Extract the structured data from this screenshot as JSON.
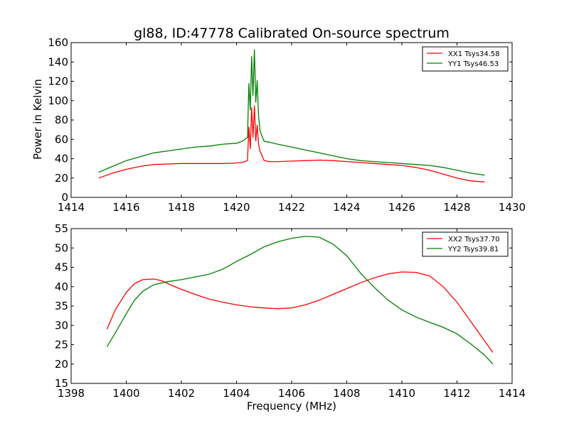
{
  "figure": {
    "title": "gl88, ID:47778 Calibrated On-source spectrum",
    "ylabel": "Power in Kelvin",
    "xlabel": "Frequency (MHz)"
  },
  "colors": {
    "xx": "#ff0000",
    "yy": "#008000",
    "axes": "#000000",
    "background": "#ffffff"
  },
  "chart_data": [
    {
      "type": "line",
      "title": "gl88, ID:47778 Calibrated On-source spectrum",
      "ylabel": "Power in Kelvin",
      "xlabel": "",
      "xlim": [
        1414,
        1430
      ],
      "ylim": [
        0,
        160
      ],
      "xticks": [
        1414,
        1416,
        1418,
        1420,
        1422,
        1424,
        1426,
        1428,
        1430
      ],
      "yticks": [
        0,
        20,
        40,
        60,
        80,
        100,
        120,
        140,
        160
      ],
      "legend_position": "top-right",
      "grid": false,
      "series": [
        {
          "name": "XX1 Tsys34.58",
          "color": "#ff0000",
          "x": [
            1415.0,
            1415.5,
            1416.0,
            1416.5,
            1417.0,
            1417.5,
            1418.0,
            1418.5,
            1419.0,
            1419.5,
            1420.0,
            1420.2,
            1420.4,
            1420.45,
            1420.5,
            1420.55,
            1420.6,
            1420.65,
            1420.7,
            1420.75,
            1420.8,
            1420.85,
            1420.9,
            1421.0,
            1421.2,
            1421.5,
            1422.0,
            1422.5,
            1423.0,
            1423.5,
            1424.0,
            1424.5,
            1425.0,
            1425.5,
            1426.0,
            1426.5,
            1427.0,
            1427.5,
            1428.0,
            1428.5,
            1429.0
          ],
          "y": [
            20,
            25,
            29,
            32,
            34,
            34.5,
            35,
            35,
            35,
            35,
            35.5,
            36,
            38,
            73,
            50,
            93,
            62,
            95,
            58,
            75,
            55,
            48,
            45,
            38,
            37,
            37,
            37.5,
            38,
            38.5,
            38,
            37,
            36,
            35,
            34,
            33,
            31,
            28,
            24,
            20,
            17,
            16
          ]
        },
        {
          "name": "YY1 Tsys46.53",
          "color": "#008000",
          "x": [
            1415.0,
            1415.5,
            1416.0,
            1416.5,
            1417.0,
            1417.5,
            1418.0,
            1418.5,
            1419.0,
            1419.5,
            1420.0,
            1420.2,
            1420.4,
            1420.45,
            1420.5,
            1420.55,
            1420.6,
            1420.65,
            1420.7,
            1420.75,
            1420.8,
            1420.85,
            1420.9,
            1421.0,
            1421.2,
            1421.5,
            1422.0,
            1422.5,
            1423.0,
            1423.5,
            1424.0,
            1424.5,
            1425.0,
            1425.5,
            1426.0,
            1426.5,
            1427.0,
            1427.5,
            1428.0,
            1428.5,
            1429.0
          ],
          "y": [
            26,
            32,
            38,
            42,
            46,
            48,
            50,
            52,
            53,
            55,
            56,
            58,
            62,
            118,
            90,
            146,
            105,
            153,
            98,
            121,
            85,
            70,
            65,
            58,
            57,
            55,
            52,
            49,
            46,
            43,
            40,
            38,
            37,
            36,
            35,
            34,
            33,
            31,
            28,
            25,
            23
          ]
        }
      ]
    },
    {
      "type": "line",
      "title": "",
      "ylabel": "",
      "xlabel": "Frequency (MHz)",
      "xlim": [
        1398,
        1414
      ],
      "ylim": [
        15,
        55
      ],
      "xticks": [
        1398,
        1400,
        1402,
        1404,
        1406,
        1408,
        1410,
        1412,
        1414
      ],
      "yticks": [
        15,
        20,
        25,
        30,
        35,
        40,
        45,
        50,
        55
      ],
      "legend_position": "top-right",
      "grid": false,
      "series": [
        {
          "name": "XX2 Tsys37.70",
          "color": "#ff0000",
          "x": [
            1399.3,
            1399.6,
            1400.0,
            1400.3,
            1400.6,
            1401.0,
            1401.3,
            1401.6,
            1402.0,
            1402.5,
            1403.0,
            1403.5,
            1404.0,
            1404.5,
            1405.0,
            1405.5,
            1406.0,
            1406.5,
            1407.0,
            1407.5,
            1408.0,
            1408.5,
            1409.0,
            1409.5,
            1410.0,
            1410.5,
            1411.0,
            1411.5,
            1412.0,
            1412.5,
            1413.0,
            1413.3
          ],
          "y": [
            29,
            34,
            38.5,
            40.8,
            41.8,
            42,
            41.5,
            40.5,
            39.3,
            38,
            36.8,
            36,
            35.3,
            34.8,
            34.5,
            34.3,
            34.5,
            35.3,
            36.5,
            38,
            39.5,
            41,
            42.3,
            43.3,
            43.8,
            43.7,
            42.8,
            40,
            36,
            31,
            26,
            23
          ]
        },
        {
          "name": "YY2 Tsys39.81",
          "color": "#008000",
          "x": [
            1399.3,
            1399.6,
            1400.0,
            1400.3,
            1400.6,
            1401.0,
            1401.5,
            1402.0,
            1402.5,
            1403.0,
            1403.5,
            1404.0,
            1404.5,
            1405.0,
            1405.5,
            1406.0,
            1406.5,
            1407.0,
            1407.5,
            1408.0,
            1408.5,
            1409.0,
            1409.5,
            1410.0,
            1410.5,
            1411.0,
            1411.5,
            1412.0,
            1412.5,
            1413.0,
            1413.3
          ],
          "y": [
            24.5,
            28,
            33,
            36.5,
            38.8,
            40.5,
            41.3,
            41.8,
            42.5,
            43.2,
            44.5,
            46.5,
            48.3,
            50.3,
            51.6,
            52.5,
            53,
            52.8,
            51,
            48,
            43.5,
            39.8,
            36.5,
            34,
            32.2,
            30.8,
            29.5,
            27.8,
            25.2,
            22.3,
            20
          ]
        }
      ]
    }
  ]
}
